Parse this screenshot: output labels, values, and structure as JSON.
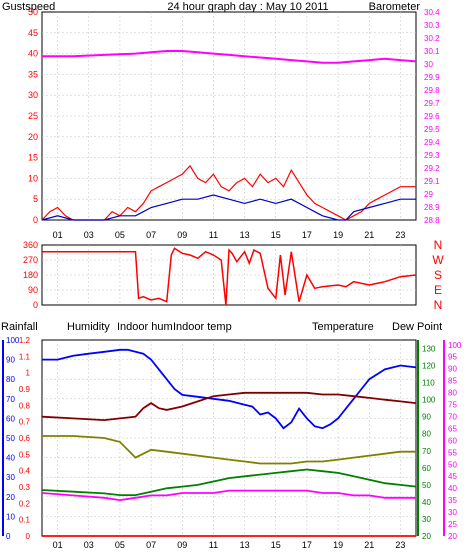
{
  "title": "24 hour graph day : May 10 2011",
  "colors": {
    "gust": "#ff0000",
    "wind": "#0000c0",
    "barometer": "#ff00ff",
    "direction": "#ff0000",
    "rainfall": "#ff0000",
    "humidity": "#0000ff",
    "indoor_hum": "#808000",
    "indoor_temp": "#800000",
    "temperature": "#008000",
    "dew_point": "#ff00ff",
    "grid": "#c0c0c0"
  },
  "chart_data": [
    {
      "type": "line",
      "labels": {
        "left": "Gustspeed",
        "right": "Barometer"
      },
      "x_ticks": [
        "01",
        "03",
        "05",
        "07",
        "09",
        "11",
        "13",
        "15",
        "17",
        "19",
        "21",
        "23"
      ],
      "left_axis": {
        "ticks": [
          "0",
          "5",
          "10",
          "15",
          "20",
          "25",
          "30",
          "35",
          "40",
          "45",
          "50"
        ],
        "ylim": [
          0,
          50
        ]
      },
      "right_axis": {
        "ticks": [
          "28.8",
          "28.9",
          "29",
          "29.1",
          "29.2",
          "29.3",
          "29.4",
          "29.5",
          "29.6",
          "29.7",
          "29.8",
          "29.9",
          "30",
          "30.1",
          "30.2",
          "30.3",
          "30.4"
        ],
        "ylim": [
          28.8,
          30.4
        ]
      },
      "xlim": [
        0,
        24
      ],
      "series": [
        {
          "name": "Barometer",
          "axis": "right",
          "color": "barometer",
          "x": [
            0,
            2,
            4,
            6,
            7,
            8,
            9,
            10,
            11,
            12,
            13,
            14,
            15,
            16,
            17,
            18,
            19,
            20,
            21,
            22,
            23,
            24
          ],
          "y": [
            30.06,
            30.06,
            30.07,
            30.08,
            30.09,
            30.1,
            30.1,
            30.09,
            30.08,
            30.07,
            30.06,
            30.05,
            30.04,
            30.03,
            30.02,
            30.01,
            30.01,
            30.02,
            30.03,
            30.04,
            30.03,
            30.02
          ]
        },
        {
          "name": "Gust",
          "axis": "left",
          "color": "gust",
          "x": [
            0,
            0.5,
            1,
            1.5,
            2,
            3,
            4,
            4.5,
            5,
            5.5,
            6,
            6.5,
            7,
            7.5,
            8,
            8.5,
            9,
            9.5,
            10,
            10.5,
            11,
            11.5,
            12,
            12.5,
            13,
            13.5,
            14,
            14.5,
            15,
            15.5,
            16,
            16.5,
            17,
            17.5,
            18,
            18.5,
            19,
            19.5,
            20,
            20.5,
            21,
            21.5,
            22,
            22.5,
            23,
            23.5,
            24
          ],
          "y": [
            0,
            2,
            3,
            1,
            0,
            0,
            0,
            2,
            1,
            3,
            2,
            4,
            7,
            8,
            9,
            10,
            11,
            13,
            10,
            9,
            11,
            8,
            7,
            9,
            10,
            8,
            11,
            9,
            10,
            8,
            12,
            9,
            6,
            4,
            3,
            2,
            1,
            0,
            1,
            2,
            4,
            5,
            6,
            7,
            8,
            8,
            8
          ]
        },
        {
          "name": "Wind",
          "axis": "left",
          "color": "wind",
          "x": [
            0,
            1,
            2,
            3,
            4,
            5,
            6,
            6.5,
            7,
            8,
            9,
            10,
            11,
            12,
            13,
            14,
            15,
            16,
            17,
            17.5,
            18,
            19,
            19.5,
            20,
            21,
            22,
            23,
            24
          ],
          "y": [
            0,
            1,
            0,
            0,
            0,
            1,
            1,
            2,
            3,
            4,
            5,
            5,
            6,
            5,
            4,
            5,
            4,
            5,
            3,
            2,
            1,
            0,
            0,
            2,
            3,
            4,
            5,
            5
          ]
        }
      ]
    },
    {
      "type": "line",
      "labels": {
        "right": [
          "N",
          "W",
          "S",
          "E",
          "N"
        ]
      },
      "x_ticks": [
        "01",
        "03",
        "05",
        "07",
        "09",
        "11",
        "13",
        "15",
        "17",
        "19",
        "21",
        "23"
      ],
      "left_axis": {
        "ticks": [
          "0",
          "90",
          "180",
          "270",
          "360"
        ],
        "ylim": [
          0,
          360
        ]
      },
      "xlim": [
        0,
        24
      ],
      "series": [
        {
          "name": "Wind direction",
          "color": "direction",
          "x": [
            0,
            2,
            4,
            5,
            6,
            6.2,
            6.5,
            7,
            7.5,
            8,
            8.3,
            8.5,
            9,
            9.5,
            10,
            10.5,
            11,
            11.5,
            11.8,
            12,
            12.2,
            12.5,
            13,
            13.3,
            13.6,
            14,
            14.5,
            15,
            15.3,
            15.6,
            16,
            16.5,
            17,
            17.5,
            18,
            19,
            19.5,
            20,
            21,
            22,
            23,
            24
          ],
          "y": [
            320,
            320,
            320,
            320,
            320,
            40,
            50,
            30,
            40,
            20,
            300,
            340,
            310,
            300,
            280,
            320,
            300,
            270,
            0,
            330,
            310,
            260,
            320,
            250,
            330,
            310,
            100,
            40,
            300,
            60,
            320,
            20,
            180,
            100,
            110,
            120,
            110,
            140,
            120,
            140,
            170,
            180
          ]
        }
      ]
    },
    {
      "type": "line",
      "labels": {
        "rainfall": "Rainfall",
        "humidity": "Humidity",
        "indoor_hum": "Indoor hum",
        "indoor_temp": "Indoor temp",
        "temperature": "Temperature",
        "dew_point": "Dew Point"
      },
      "x_ticks": [
        "01",
        "03",
        "05",
        "07",
        "09",
        "11",
        "13",
        "15",
        "17",
        "19",
        "21",
        "23"
      ],
      "humidity_axis": {
        "ticks": [
          "0",
          "10",
          "20",
          "30",
          "40",
          "50",
          "60",
          "70",
          "80",
          "90",
          "100"
        ],
        "ylim": [
          0,
          100
        ]
      },
      "rain_axis": {
        "ticks": [
          "0",
          "0.1",
          "0.2",
          "0.3",
          "0.4",
          "0.5",
          "0.6",
          "0.7",
          "0.8",
          "0.9",
          "1",
          "1.1",
          "1.2"
        ],
        "ylim": [
          0,
          1.2
        ]
      },
      "temp_axis": {
        "ticks": [
          "20",
          "30",
          "40",
          "50",
          "60",
          "70",
          "80",
          "90",
          "100",
          "110",
          "120",
          "130"
        ],
        "ylim": [
          20,
          135
        ]
      },
      "dew_axis": {
        "ticks": [
          "20",
          "25",
          "30",
          "35",
          "40",
          "45",
          "50",
          "55",
          "60",
          "65",
          "70",
          "75",
          "80",
          "85",
          "90",
          "95",
          "100"
        ],
        "ylim": [
          20,
          102
        ]
      },
      "xlim": [
        0,
        24
      ],
      "series": [
        {
          "name": "Humidity",
          "axis": "humidity",
          "color": "humidity",
          "x": [
            0,
            1,
            2,
            3,
            4,
            5,
            5.5,
            6,
            6.5,
            7,
            7.5,
            8,
            8.5,
            9,
            10,
            11,
            12,
            13,
            13.5,
            14,
            14.5,
            15,
            15.5,
            16,
            16.5,
            17,
            17.5,
            18,
            18.5,
            19,
            19.5,
            20,
            20.5,
            21,
            22,
            23,
            24
          ],
          "y": [
            90,
            90,
            92,
            93,
            94,
            95,
            95,
            94,
            93,
            90,
            85,
            80,
            75,
            72,
            71,
            70,
            69,
            67,
            66,
            62,
            63,
            60,
            55,
            58,
            65,
            60,
            56,
            55,
            57,
            60,
            65,
            70,
            75,
            80,
            85,
            87,
            86
          ]
        },
        {
          "name": "Indoor temp",
          "axis": "temp",
          "color": "indoor_temp",
          "x": [
            0,
            2,
            4,
            5,
            6,
            6.5,
            7,
            7.5,
            8,
            9,
            10,
            11,
            12,
            13,
            14,
            15,
            16,
            17,
            18,
            19,
            20,
            21,
            22,
            23,
            24
          ],
          "y": [
            90,
            89,
            88,
            89,
            90,
            95,
            98,
            95,
            94,
            96,
            99,
            102,
            103,
            104,
            104,
            104,
            104,
            104,
            103,
            103,
            102,
            101,
            100,
            99,
            98
          ]
        },
        {
          "name": "Indoor hum",
          "axis": "humidity",
          "color": "indoor_hum",
          "x": [
            0,
            2,
            4,
            5,
            5.5,
            6,
            6.5,
            7,
            8,
            9,
            10,
            11,
            12,
            13,
            14,
            15,
            16,
            17,
            18,
            19,
            20,
            21,
            22,
            23,
            24
          ],
          "y": [
            51,
            51,
            50,
            48,
            44,
            40,
            42,
            44,
            43,
            42,
            41,
            40,
            39,
            38,
            37,
            37,
            37,
            38,
            38,
            39,
            40,
            41,
            42,
            43,
            43
          ]
        },
        {
          "name": "Temperature",
          "axis": "temp",
          "color": "temperature",
          "x": [
            0,
            2,
            4,
            5,
            6,
            7,
            8,
            9,
            10,
            11,
            12,
            13,
            14,
            15,
            16,
            17,
            18,
            19,
            20,
            21,
            22,
            23,
            24
          ],
          "y": [
            47,
            46,
            45,
            44,
            44,
            46,
            48,
            49,
            50,
            52,
            54,
            55,
            56,
            57,
            58,
            59,
            58,
            57,
            55,
            53,
            51,
            50,
            49
          ]
        },
        {
          "name": "Dew Point",
          "axis": "dew",
          "color": "dew_point",
          "x": [
            0,
            2,
            4,
            5,
            6,
            7,
            8,
            9,
            10,
            11,
            12,
            13,
            14,
            15,
            16,
            17,
            18,
            19,
            20,
            21,
            22,
            23,
            24
          ],
          "y": [
            38,
            37,
            36,
            35,
            36,
            37,
            37,
            38,
            38,
            38,
            39,
            39,
            39,
            39,
            39,
            39,
            38,
            38,
            37,
            37,
            36,
            36,
            36
          ]
        },
        {
          "name": "Rainfall",
          "axis": "rain",
          "color": "rainfall",
          "x": [
            0,
            24
          ],
          "y": [
            0,
            0
          ]
        }
      ]
    }
  ]
}
